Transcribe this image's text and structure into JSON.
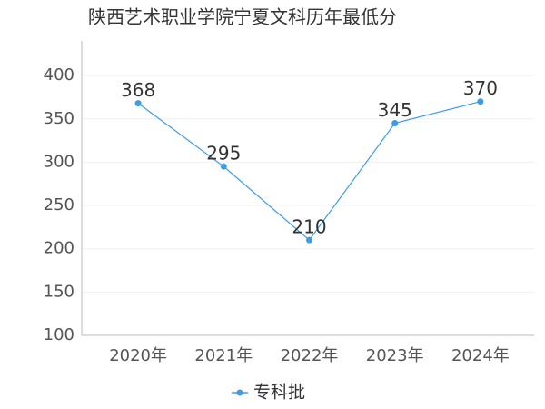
{
  "chart_data": {
    "type": "line",
    "title": "陕西艺术职业学院宁夏文科历年最低分",
    "categories": [
      "2020年",
      "2021年",
      "2022年",
      "2023年",
      "2024年"
    ],
    "series": [
      {
        "name": "专科批",
        "color": "#3b9de8",
        "values": [
          368,
          295,
          210,
          345,
          370
        ]
      }
    ],
    "ylim": [
      100,
      440
    ],
    "yticks": [
      100,
      150,
      200,
      250,
      300,
      350,
      400
    ],
    "grid": true,
    "legend": "bottom"
  }
}
